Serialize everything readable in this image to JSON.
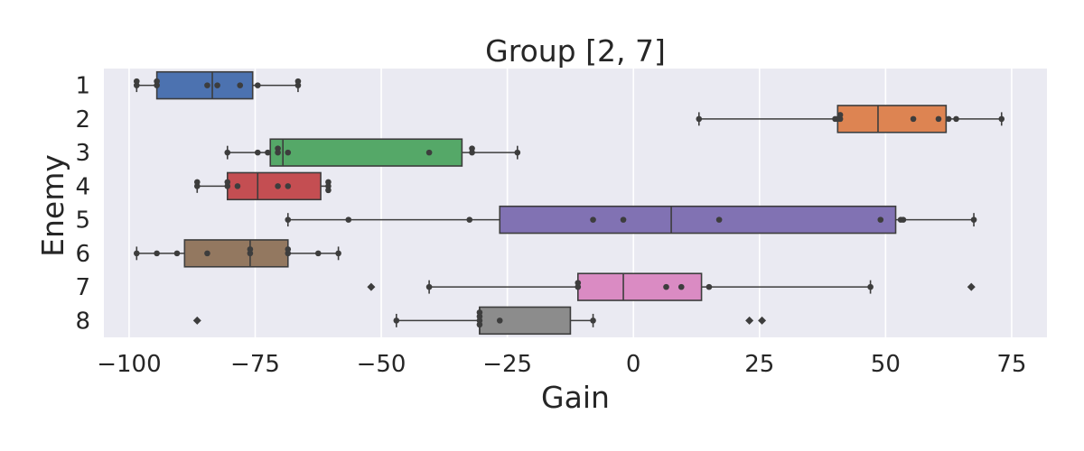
{
  "chart_data": {
    "type": "boxplot",
    "orientation": "horizontal",
    "title": "Group [2, 7]",
    "xlabel": "Gain",
    "ylabel": "Enemy",
    "xlim": [
      -105,
      82
    ],
    "xticks": [
      -100,
      -75,
      -50,
      -25,
      0,
      25,
      50,
      75
    ],
    "grid": true,
    "categories": [
      "1",
      "2",
      "3",
      "4",
      "5",
      "6",
      "7",
      "8"
    ],
    "colors": [
      "#4c72b0",
      "#dd8452",
      "#55a868",
      "#c44e52",
      "#8172b3",
      "#937860",
      "#da8bc3",
      "#8c8c8c"
    ],
    "boxes": [
      {
        "category": "1",
        "whisker_low": -98.5,
        "q1": -94.5,
        "median": -83.5,
        "q3": -75.5,
        "whisker_high": -66.5,
        "outliers": [],
        "points": [
          -98.5,
          -98.5,
          -94.5,
          -94.5,
          -84.5,
          -82.5,
          -78,
          -74.5,
          -66.5,
          -66.5
        ]
      },
      {
        "category": "2",
        "whisker_low": 13,
        "q1": 40.5,
        "median": 48.5,
        "q3": 62,
        "whisker_high": 73,
        "outliers": [],
        "points": [
          13,
          40,
          40.5,
          41,
          41,
          55.5,
          60.5,
          62.5,
          64,
          73
        ]
      },
      {
        "category": "3",
        "whisker_low": -80.5,
        "q1": -72,
        "median": -69.5,
        "q3": -34,
        "whisker_high": -23,
        "outliers": [],
        "points": [
          -80.5,
          -74.5,
          -72.5,
          -70.5,
          -70.5,
          -68.5,
          -40.5,
          -32,
          -32,
          -23
        ]
      },
      {
        "category": "4",
        "whisker_low": -86.5,
        "q1": -80.5,
        "median": -74.5,
        "q3": -62,
        "whisker_high": -60.5,
        "outliers": [],
        "points": [
          -86.5,
          -86.5,
          -80.5,
          -80.5,
          -78.5,
          -70.5,
          -68.5,
          -60.5,
          -60.5,
          -60.5
        ]
      },
      {
        "category": "5",
        "whisker_low": -68.5,
        "q1": -26.5,
        "median": 7.5,
        "q3": 52,
        "whisker_high": 67.5,
        "outliers": [],
        "points": [
          -68.5,
          -56.5,
          -32.5,
          -8,
          -2,
          17,
          49,
          53,
          53.5,
          67.5
        ]
      },
      {
        "category": "6",
        "whisker_low": -98.5,
        "q1": -89,
        "median": -76,
        "q3": -68.5,
        "whisker_high": -58.5,
        "outliers": [],
        "points": [
          -98.5,
          -94.5,
          -90.5,
          -84.5,
          -76,
          -76,
          -68.5,
          -68.5,
          -62.5,
          -58.5
        ]
      },
      {
        "category": "7",
        "whisker_low": -40.5,
        "q1": -11,
        "median": -2,
        "q3": 13.5,
        "whisker_high": 47,
        "outliers": [
          -52,
          67
        ],
        "points": [
          -40.5,
          -11,
          -11,
          6.5,
          9.5,
          15,
          47
        ]
      },
      {
        "category": "8",
        "whisker_low": -47,
        "q1": -30.5,
        "median": -30.5,
        "q3": -12.5,
        "whisker_high": -8,
        "outliers": [
          -86.5,
          23,
          25.5
        ],
        "points": [
          -47,
          -30.5,
          -30.5,
          -30.5,
          -30.5,
          -26.5,
          -8
        ]
      }
    ]
  }
}
